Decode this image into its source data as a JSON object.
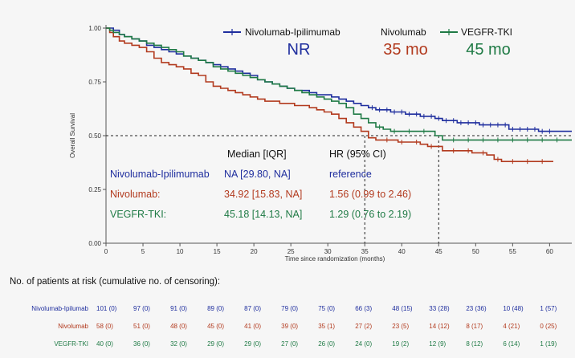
{
  "chart_data": {
    "type": "line",
    "subtype": "kaplan-meier",
    "xlabel": "Time since randomization (months)",
    "ylabel": "Overall Survival",
    "xlim": [
      0,
      63
    ],
    "ylim": [
      0,
      1
    ],
    "xticks": [
      0,
      5,
      10,
      15,
      20,
      25,
      30,
      35,
      40,
      45,
      50,
      55,
      60
    ],
    "yticks": [
      "0.00",
      "0.25",
      "0.50",
      "0.75",
      "1.00"
    ],
    "reference_line_y": 0.5,
    "median_markers_x": [
      35,
      45
    ],
    "grid": false,
    "legend": {
      "position": "top-right",
      "entries": [
        "Nivolumab-Ipilimumab",
        "Nivolumab",
        "VEGFR-TKI"
      ]
    },
    "medians_big": {
      "nivo_ipi": "NR",
      "nivo": "35 mo",
      "vegfr": "45 mo"
    },
    "series": [
      {
        "name": "Nivolumab-Ipilimumab",
        "color": "#1f2e9e",
        "x": [
          0,
          0.5,
          1,
          1.8,
          2.5,
          3.5,
          4.5,
          5.5,
          6.5,
          7.5,
          8.5,
          9.5,
          10.5,
          11.5,
          12.5,
          13.5,
          14.5,
          15.5,
          16.5,
          17.5,
          18.5,
          19.5,
          20.5,
          21.5,
          22.5,
          23.5,
          24.5,
          25.5,
          26.5,
          27.5,
          28.5,
          29.5,
          30.5,
          31.5,
          32.5,
          33.5,
          34.5,
          35.5,
          36.5,
          37.5,
          38.5,
          39.5,
          40.5,
          41.5,
          42.5,
          43.5,
          44.5,
          45.5,
          46.5,
          47.5,
          48.5,
          49.5,
          50.5,
          51.5,
          52.5,
          53.5,
          54.5,
          55.5,
          56.5,
          57.5,
          58.5,
          59.5,
          60.5,
          61.5,
          63
        ],
        "y": [
          1.0,
          1.0,
          0.99,
          0.97,
          0.96,
          0.95,
          0.94,
          0.92,
          0.91,
          0.9,
          0.89,
          0.88,
          0.87,
          0.86,
          0.85,
          0.84,
          0.83,
          0.82,
          0.81,
          0.8,
          0.79,
          0.78,
          0.76,
          0.75,
          0.74,
          0.73,
          0.72,
          0.71,
          0.71,
          0.7,
          0.69,
          0.69,
          0.68,
          0.67,
          0.66,
          0.65,
          0.64,
          0.63,
          0.62,
          0.62,
          0.61,
          0.61,
          0.6,
          0.6,
          0.59,
          0.59,
          0.58,
          0.57,
          0.57,
          0.56,
          0.56,
          0.56,
          0.55,
          0.55,
          0.55,
          0.55,
          0.53,
          0.53,
          0.53,
          0.53,
          0.52,
          0.52,
          0.52,
          0.52,
          0.52
        ],
        "censor_x": [
          36,
          37,
          38,
          39,
          40,
          41,
          42,
          43,
          44,
          45,
          46,
          47,
          48,
          49,
          50,
          51,
          52,
          53,
          54,
          55,
          56,
          57,
          58,
          59,
          60
        ]
      },
      {
        "name": "Nivolumab",
        "color": "#b23a1e",
        "x": [
          0,
          0.5,
          1,
          1.8,
          2.5,
          3.5,
          4.5,
          5.5,
          6.5,
          7.5,
          8.5,
          9.5,
          10.5,
          11.5,
          12.5,
          13.5,
          14.5,
          15.5,
          16.5,
          17.5,
          18.5,
          19.5,
          20.5,
          21.5,
          22.5,
          23.5,
          24.5,
          25.5,
          26.5,
          27.5,
          28.5,
          29.5,
          30.5,
          31.5,
          32.5,
          33.5,
          34.5,
          35.5,
          36.5,
          37.5,
          38.5,
          39.5,
          40.5,
          41.5,
          42.5,
          43.5,
          44.5,
          45.5,
          46.5,
          47.5,
          48.5,
          49.5,
          50.5,
          51.5,
          52.5,
          53.5,
          54.5,
          55.5,
          56.5,
          57.5,
          58.5,
          59.5,
          60.5
        ],
        "y": [
          1.0,
          0.98,
          0.96,
          0.94,
          0.93,
          0.92,
          0.91,
          0.89,
          0.86,
          0.84,
          0.83,
          0.82,
          0.81,
          0.79,
          0.78,
          0.75,
          0.73,
          0.72,
          0.71,
          0.7,
          0.69,
          0.68,
          0.67,
          0.66,
          0.66,
          0.65,
          0.65,
          0.64,
          0.64,
          0.63,
          0.62,
          0.61,
          0.6,
          0.58,
          0.56,
          0.54,
          0.52,
          0.49,
          0.48,
          0.48,
          0.48,
          0.47,
          0.47,
          0.47,
          0.46,
          0.45,
          0.45,
          0.43,
          0.43,
          0.43,
          0.43,
          0.42,
          0.42,
          0.41,
          0.39,
          0.38,
          0.38,
          0.38,
          0.38,
          0.38,
          0.38,
          0.38,
          0.38
        ],
        "censor_x": [
          38,
          40,
          42,
          44,
          47,
          49,
          51,
          53,
          55,
          57,
          59
        ]
      },
      {
        "name": "VEGFR-TKI",
        "color": "#1f7a45",
        "x": [
          0,
          0.5,
          1,
          1.8,
          2.5,
          3.5,
          4.5,
          5.5,
          6.5,
          7.5,
          8.5,
          9.5,
          10.5,
          11.5,
          12.5,
          13.5,
          14.5,
          15.5,
          16.5,
          17.5,
          18.5,
          19.5,
          20.5,
          21.5,
          22.5,
          23.5,
          24.5,
          25.5,
          26.5,
          27.5,
          28.5,
          29.5,
          30.5,
          31.5,
          32.5,
          33.5,
          34.5,
          35.5,
          36.5,
          37.5,
          38.5,
          39.5,
          40.5,
          41.5,
          42.5,
          43.5,
          44.5,
          45.5,
          46.5,
          47.5,
          48.5,
          49.5,
          50.5,
          51.5,
          52.5,
          53.5,
          54.5,
          55.5,
          56.5,
          57.5,
          58.5,
          59.5,
          60.5,
          61.5,
          63
        ],
        "y": [
          1.0,
          0.99,
          0.98,
          0.97,
          0.96,
          0.95,
          0.94,
          0.93,
          0.92,
          0.91,
          0.9,
          0.89,
          0.87,
          0.86,
          0.85,
          0.84,
          0.82,
          0.81,
          0.8,
          0.79,
          0.78,
          0.77,
          0.76,
          0.75,
          0.74,
          0.73,
          0.72,
          0.71,
          0.7,
          0.69,
          0.68,
          0.67,
          0.66,
          0.65,
          0.63,
          0.6,
          0.58,
          0.56,
          0.54,
          0.53,
          0.52,
          0.52,
          0.52,
          0.52,
          0.52,
          0.52,
          0.5,
          0.48,
          0.48,
          0.48,
          0.48,
          0.48,
          0.48,
          0.48,
          0.48,
          0.48,
          0.48,
          0.48,
          0.48,
          0.48,
          0.48,
          0.48,
          0.48,
          0.48,
          0.48
        ],
        "censor_x": [
          37,
          39,
          41,
          43,
          47,
          49,
          51,
          53,
          55,
          57,
          59,
          61
        ]
      }
    ],
    "stats_table": {
      "headers": [
        "Median [IQR]",
        "HR (95% CI)"
      ],
      "rows": [
        {
          "name": "Nivolumab-Ipilimumab",
          "median": "NA [29.80, NA]",
          "hr": "reference",
          "color": "#1f2e9e"
        },
        {
          "name": "Nivolumab:",
          "median": "34.92 [15.83, NA]",
          "hr": "1.56 (0.99 to 2.46)",
          "color": "#b23a1e"
        },
        {
          "name": "VEGFR-TKI:",
          "median": "45.18 [14.13, NA]",
          "hr": "1.29 (0.76 to 2.19)",
          "color": "#1f7a45"
        }
      ]
    }
  },
  "risk_table": {
    "title": "No. of patients at risk (cumulative no. of censoring):",
    "rows": [
      {
        "name": "Nivolumab-Ipilumab",
        "color": "#1f2e9e",
        "cells": [
          "101 (0)",
          "97 (0)",
          "91 (0)",
          "89 (0)",
          "87 (0)",
          "79 (0)",
          "75 (0)",
          "66 (3)",
          "48 (15)",
          "33 (28)",
          "23 (36)",
          "10 (48)",
          "1 (57)"
        ]
      },
      {
        "name": "Nivolumab",
        "color": "#b23a1e",
        "cells": [
          "58 (0)",
          "51 (0)",
          "48 (0)",
          "45 (0)",
          "41 (0)",
          "39 (0)",
          "35 (1)",
          "27 (2)",
          "23 (5)",
          "14 (12)",
          "8 (17)",
          "4 (21)",
          "0 (25)"
        ]
      },
      {
        "name": "VEGFR-TKI",
        "color": "#1f7a45",
        "cells": [
          "40 (0)",
          "36 (0)",
          "32 (0)",
          "29 (0)",
          "29 (0)",
          "27 (0)",
          "26 (0)",
          "24 (0)",
          "19 (2)",
          "12 (9)",
          "8 (12)",
          "6 (14)",
          "1 (19)"
        ]
      }
    ]
  }
}
